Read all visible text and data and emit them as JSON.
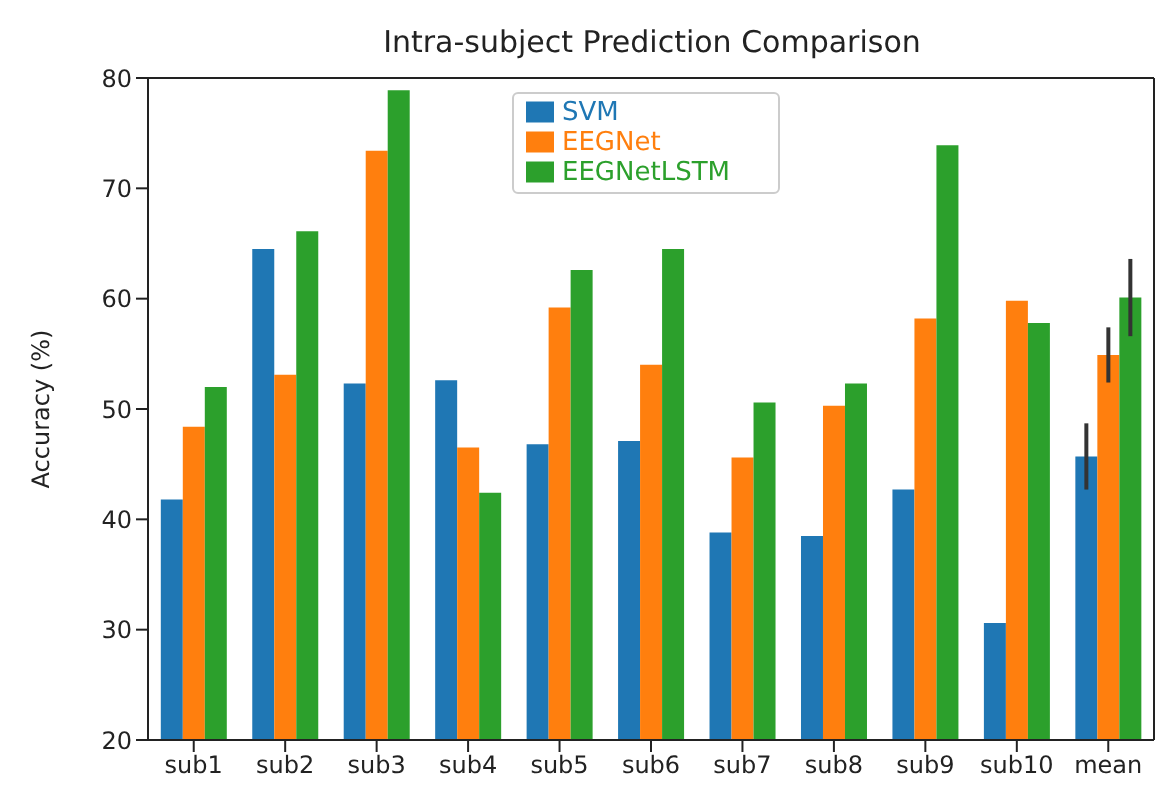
{
  "chart_data": {
    "type": "bar",
    "title": "Intra-subject Prediction Comparison",
    "ylabel": "Accuracy (%)",
    "categories": [
      "sub1",
      "sub2",
      "sub3",
      "sub4",
      "sub5",
      "sub6",
      "sub7",
      "sub8",
      "sub9",
      "sub10",
      "mean"
    ],
    "series": [
      {
        "name": "SVM",
        "color": "#1f77b4",
        "values": [
          41.8,
          64.5,
          52.3,
          52.6,
          46.8,
          47.1,
          38.8,
          38.5,
          42.7,
          30.6,
          45.7
        ],
        "errors": [
          null,
          null,
          null,
          null,
          null,
          null,
          null,
          null,
          null,
          null,
          3
        ]
      },
      {
        "name": "EEGNet",
        "color": "#ff7f0e",
        "values": [
          48.4,
          53.1,
          73.4,
          46.5,
          59.2,
          54.0,
          45.6,
          50.3,
          58.2,
          59.8,
          54.9
        ],
        "errors": [
          null,
          null,
          null,
          null,
          null,
          null,
          null,
          null,
          null,
          null,
          2.5
        ]
      },
      {
        "name": "EEGNetLSTM",
        "color": "#2ca02c",
        "values": [
          52.0,
          66.1,
          78.9,
          42.4,
          62.6,
          64.5,
          50.6,
          52.3,
          73.9,
          57.8,
          60.1
        ],
        "errors": [
          null,
          null,
          null,
          null,
          null,
          null,
          null,
          null,
          null,
          null,
          3.5
        ]
      }
    ],
    "ylim": [
      20,
      80
    ],
    "yticks": [
      20,
      30,
      40,
      50,
      60,
      70,
      80
    ],
    "legend": "top",
    "grid": false
  }
}
